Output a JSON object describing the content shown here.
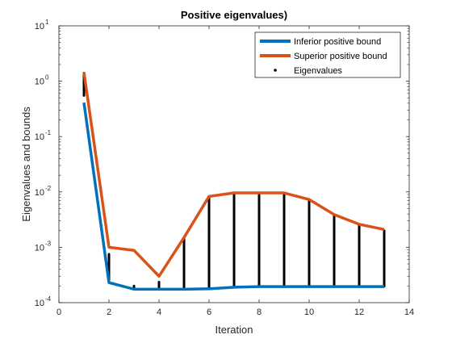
{
  "chart_data": {
    "type": "line",
    "title": "Positive eigenvalues)",
    "xlabel": "Iteration",
    "ylabel": "Eigenvalues and bounds",
    "xlim": [
      0,
      14
    ],
    "ylim": [
      0.0001,
      10
    ],
    "yscale": "log",
    "grid": false,
    "legend_position": "top-right",
    "x_ticks": [
      0,
      2,
      4,
      6,
      8,
      10,
      12,
      14
    ],
    "x_tick_labels": [
      "0",
      "2",
      "4",
      "6",
      "8",
      "10",
      "12",
      "14"
    ],
    "y_ticks": [
      0.0001,
      0.001,
      0.01,
      0.1,
      1,
      10
    ],
    "y_tick_labels": [
      {
        "base": "10",
        "exp": "-4"
      },
      {
        "base": "10",
        "exp": "-3"
      },
      {
        "base": "10",
        "exp": "-2"
      },
      {
        "base": "10",
        "exp": "-1"
      },
      {
        "base": "10",
        "exp": "0"
      },
      {
        "base": "10",
        "exp": "1"
      }
    ],
    "series": [
      {
        "name": "Inferior positive bound",
        "color": "#0072BD",
        "x": [
          1,
          2,
          3,
          4,
          5,
          6,
          7,
          8,
          9,
          10,
          11,
          12,
          13
        ],
        "y": [
          0.41,
          0.00023,
          0.000175,
          0.000175,
          0.000175,
          0.000178,
          0.00019,
          0.000195,
          0.000195,
          0.000195,
          0.000195,
          0.000195,
          0.000195
        ]
      },
      {
        "name": "Superior positive bound",
        "color": "#D95319",
        "x": [
          1,
          2,
          3,
          4,
          5,
          6,
          7,
          8,
          9,
          10,
          11,
          12,
          13
        ],
        "y": [
          1.45,
          0.001,
          0.00088,
          0.0003,
          0.0015,
          0.0083,
          0.0096,
          0.0096,
          0.0096,
          0.0073,
          0.0039,
          0.0026,
          0.0021
        ]
      },
      {
        "name": "Eigenvalues",
        "color": "#000000",
        "marker": "point",
        "eigenvalue_ranges": [
          {
            "x": 1,
            "low": 0.55,
            "high": 1.4
          },
          {
            "x": 2,
            "low": 0.00025,
            "high": 0.00075
          },
          {
            "x": 3,
            "low": 0.00018,
            "high": 0.0002
          },
          {
            "x": 4,
            "low": 0.000178,
            "high": 0.000235
          },
          {
            "x": 5,
            "low": 0.00018,
            "high": 0.0015
          },
          {
            "x": 6,
            "low": 0.000182,
            "high": 0.0082
          },
          {
            "x": 7,
            "low": 0.000192,
            "high": 0.0095
          },
          {
            "x": 8,
            "low": 0.000197,
            "high": 0.0095
          },
          {
            "x": 9,
            "low": 0.000197,
            "high": 0.0095
          },
          {
            "x": 10,
            "low": 0.000197,
            "high": 0.0072
          },
          {
            "x": 11,
            "low": 0.000197,
            "high": 0.0038
          },
          {
            "x": 12,
            "low": 0.000197,
            "high": 0.0025
          },
          {
            "x": 13,
            "low": 0.000197,
            "high": 0.002
          }
        ]
      }
    ]
  }
}
